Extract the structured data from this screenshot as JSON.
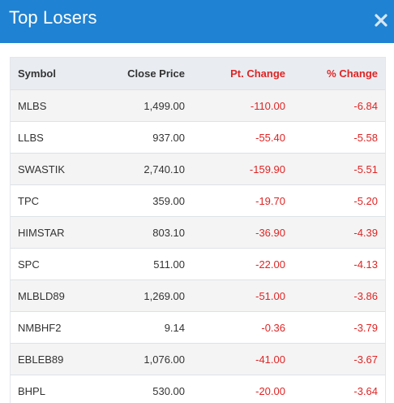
{
  "modal": {
    "title": "Top Losers",
    "close_icon": "close-icon",
    "accent_color": "#1f82d2",
    "negative_color": "#e02424"
  },
  "table": {
    "headers": {
      "symbol": "Symbol",
      "close_price": "Close Price",
      "pt_change": "Pt. Change",
      "pct_change": "% Change"
    },
    "rows": [
      {
        "symbol": "MLBS",
        "close_price": "1,499.00",
        "pt_change": "-110.00",
        "pct_change": "-6.84"
      },
      {
        "symbol": "LLBS",
        "close_price": "937.00",
        "pt_change": "-55.40",
        "pct_change": "-5.58"
      },
      {
        "symbol": "SWASTIK",
        "close_price": "2,740.10",
        "pt_change": "-159.90",
        "pct_change": "-5.51"
      },
      {
        "symbol": "TPC",
        "close_price": "359.00",
        "pt_change": "-19.70",
        "pct_change": "-5.20"
      },
      {
        "symbol": "HIMSTAR",
        "close_price": "803.10",
        "pt_change": "-36.90",
        "pct_change": "-4.39"
      },
      {
        "symbol": "SPC",
        "close_price": "511.00",
        "pt_change": "-22.00",
        "pct_change": "-4.13"
      },
      {
        "symbol": "MLBLD89",
        "close_price": "1,269.00",
        "pt_change": "-51.00",
        "pct_change": "-3.86"
      },
      {
        "symbol": "NMBHF2",
        "close_price": "9.14",
        "pt_change": "-0.36",
        "pct_change": "-3.79"
      },
      {
        "symbol": "EBLEB89",
        "close_price": "1,076.00",
        "pt_change": "-41.00",
        "pct_change": "-3.67"
      },
      {
        "symbol": "BHPL",
        "close_price": "530.00",
        "pt_change": "-20.00",
        "pct_change": "-3.64"
      }
    ]
  }
}
